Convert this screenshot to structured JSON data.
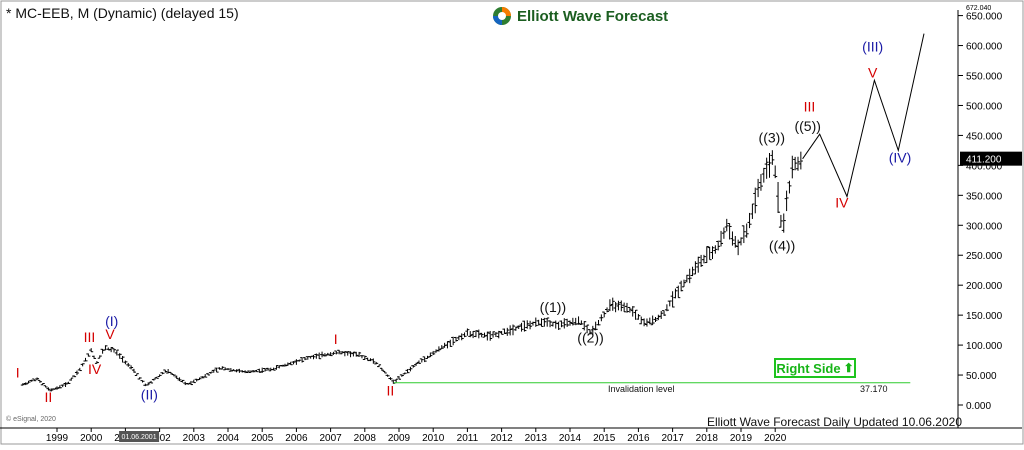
{
  "header": {
    "title": "* MC-EEB, M (Dynamic) (delayed 15)",
    "brand_name": "Elliott Wave Forecast",
    "copyright": "© eSignal, 2020"
  },
  "footer": {
    "text": "Elliott Wave Forecast Daily Updated 10.06.2020"
  },
  "colors": {
    "up": "#000000",
    "label_red": "#d40000",
    "label_blue": "#1a1aa6",
    "label_black": "#111111",
    "invalidation": "#2ecc2e",
    "price_box": "#000000",
    "brand_green": "#1b5e20"
  },
  "chart_data": {
    "type": "ohlc",
    "x_axis": {
      "type": "time",
      "ticks": [
        "1999",
        "2000",
        "2001",
        "2002",
        "2003",
        "2004",
        "2005",
        "2006",
        "2007",
        "2008",
        "2009",
        "2010",
        "2011",
        "2012",
        "2013",
        "2014",
        "2015",
        "2016",
        "2017",
        "2018",
        "2019",
        "2020"
      ],
      "cursor_label": "01.06.2001"
    },
    "y_axis": {
      "range": [
        0,
        672.04
      ],
      "ticks": [
        0,
        50,
        100,
        150,
        200,
        250,
        300,
        350,
        400,
        450,
        500,
        550,
        600,
        650
      ],
      "tick_labels": [
        "0.000",
        "50.000",
        "100.000",
        "150.000",
        "200.000",
        "250.000",
        "300.000",
        "350.000",
        "400.000",
        "450.000",
        "500.000",
        "550.000",
        "600.000",
        "650.000"
      ],
      "top_label": "672.040"
    },
    "last_price": 411.2,
    "last_price_label": "411.200",
    "series": [
      {
        "anchors": [
          {
            "x": 1998.0,
            "y": 34
          },
          {
            "x": 1998.4,
            "y": 44
          },
          {
            "x": 1998.8,
            "y": 24
          },
          {
            "x": 1999.3,
            "y": 35
          },
          {
            "x": 1999.7,
            "y": 62
          },
          {
            "x": 2000.0,
            "y": 92
          },
          {
            "x": 2000.15,
            "y": 70
          },
          {
            "x": 2000.4,
            "y": 96
          },
          {
            "x": 2000.7,
            "y": 90
          },
          {
            "x": 2001.2,
            "y": 60
          },
          {
            "x": 2001.6,
            "y": 32
          },
          {
            "x": 2002.2,
            "y": 58
          },
          {
            "x": 2002.8,
            "y": 34
          },
          {
            "x": 2003.8,
            "y": 62
          },
          {
            "x": 2004.5,
            "y": 55
          },
          {
            "x": 2005.3,
            "y": 60
          },
          {
            "x": 2006.3,
            "y": 78
          },
          {
            "x": 2007.2,
            "y": 88
          },
          {
            "x": 2007.8,
            "y": 84
          },
          {
            "x": 2008.3,
            "y": 72
          },
          {
            "x": 2008.85,
            "y": 38
          },
          {
            "x": 2009.5,
            "y": 68
          },
          {
            "x": 2010.3,
            "y": 98
          },
          {
            "x": 2011.0,
            "y": 120
          },
          {
            "x": 2011.7,
            "y": 115
          },
          {
            "x": 2012.5,
            "y": 130
          },
          {
            "x": 2013.3,
            "y": 140
          },
          {
            "x": 2013.6,
            "y": 133
          },
          {
            "x": 2014.3,
            "y": 140
          },
          {
            "x": 2014.6,
            "y": 120
          },
          {
            "x": 2015.2,
            "y": 168
          },
          {
            "x": 2015.8,
            "y": 158
          },
          {
            "x": 2016.2,
            "y": 135
          },
          {
            "x": 2016.7,
            "y": 150
          },
          {
            "x": 2017.2,
            "y": 195
          },
          {
            "x": 2017.8,
            "y": 238
          },
          {
            "x": 2018.3,
            "y": 262
          },
          {
            "x": 2018.6,
            "y": 300
          },
          {
            "x": 2018.9,
            "y": 262
          },
          {
            "x": 2019.2,
            "y": 295
          },
          {
            "x": 2019.5,
            "y": 360
          },
          {
            "x": 2019.95,
            "y": 415
          },
          {
            "x": 2020.2,
            "y": 290
          },
          {
            "x": 2020.5,
            "y": 395
          },
          {
            "x": 2020.8,
            "y": 411
          }
        ]
      }
    ],
    "projection": [
      {
        "x": 2020.8,
        "y": 411
      },
      {
        "x": 2021.3,
        "y": 452
      },
      {
        "x": 2022.1,
        "y": 348
      },
      {
        "x": 2022.9,
        "y": 542
      },
      {
        "x": 2023.6,
        "y": 425
      },
      {
        "x": 2024.35,
        "y": 620
      }
    ],
    "annotations": [
      {
        "text": "I",
        "x": 1997.85,
        "y": 46,
        "color": "red"
      },
      {
        "text": "II",
        "x": 1998.75,
        "y": 5,
        "color": "red"
      },
      {
        "text": "III",
        "x": 1999.95,
        "y": 105,
        "color": "red"
      },
      {
        "text": "IV",
        "x": 2000.1,
        "y": 52,
        "color": "red"
      },
      {
        "text": "V",
        "x": 2000.55,
        "y": 110,
        "color": "red"
      },
      {
        "text": "(I)",
        "x": 2000.6,
        "y": 132,
        "color": "blue"
      },
      {
        "text": "(II)",
        "x": 2001.7,
        "y": 9,
        "color": "blue"
      },
      {
        "text": "I",
        "x": 2007.15,
        "y": 102,
        "color": "red"
      },
      {
        "text": "II",
        "x": 2008.75,
        "y": 16,
        "color": "red"
      },
      {
        "text": "((1))",
        "x": 2013.5,
        "y": 155,
        "color": "black"
      },
      {
        "text": "((2))",
        "x": 2014.6,
        "y": 104,
        "color": "black"
      },
      {
        "text": "((3))",
        "x": 2019.9,
        "y": 438,
        "color": "black"
      },
      {
        "text": "((4))",
        "x": 2020.2,
        "y": 258,
        "color": "black"
      },
      {
        "text": "((5))",
        "x": 2020.95,
        "y": 457,
        "color": "black"
      },
      {
        "text": "III",
        "x": 2021.0,
        "y": 490,
        "color": "red"
      },
      {
        "text": "IV",
        "x": 2021.95,
        "y": 330,
        "color": "red"
      },
      {
        "text": "(III)",
        "x": 2022.85,
        "y": 590,
        "color": "blue"
      },
      {
        "text": "V",
        "x": 2022.85,
        "y": 547,
        "color": "red"
      },
      {
        "text": "(IV)",
        "x": 2023.65,
        "y": 405,
        "color": "blue"
      }
    ],
    "invalidation": {
      "from_x": 2008.85,
      "to_x": 2023.95,
      "y": 37.17,
      "label": "Invalidation level",
      "value_label": "37.170"
    },
    "right_side_label": "Right Side"
  }
}
